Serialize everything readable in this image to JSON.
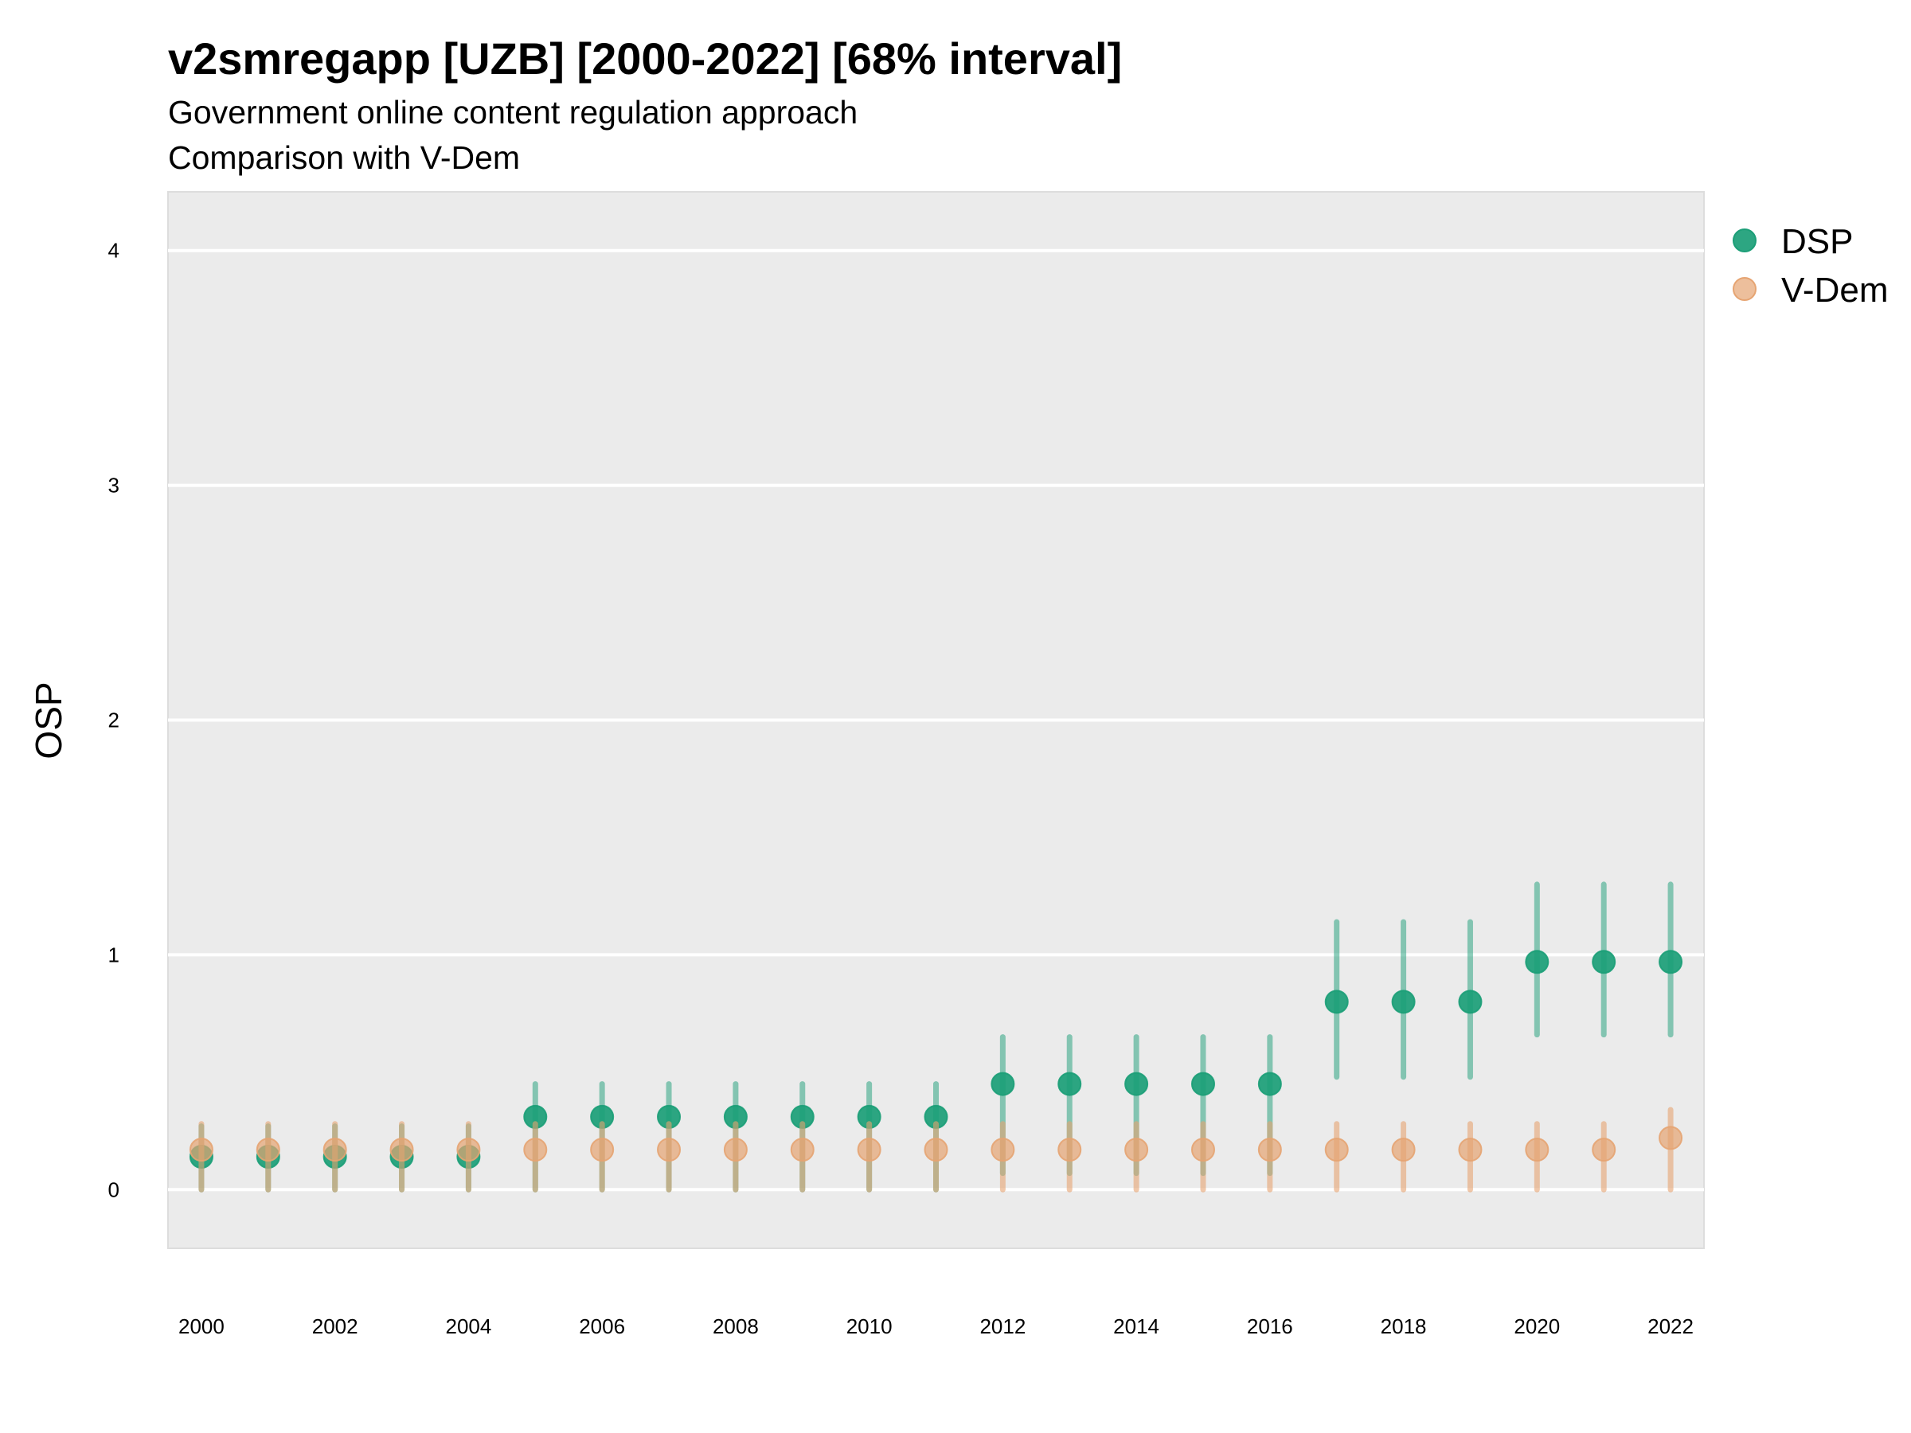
{
  "chart_data": {
    "type": "scatter",
    "title": "v2smregapp [UZB] [2000-2022] [68% interval]",
    "subtitle_lines": [
      "Government online content regulation approach",
      "Comparison with V-Dem"
    ],
    "xlabel": "",
    "ylabel": "OSP",
    "ylim": [
      -0.25,
      4.25
    ],
    "xlim": [
      1999.5,
      2022.5
    ],
    "y_ticks": [
      0,
      1,
      2,
      3,
      4
    ],
    "y_tick_labels": [
      "0",
      "1",
      "2",
      "3",
      "4"
    ],
    "x_ticks": [
      2000,
      2002,
      2004,
      2006,
      2008,
      2010,
      2012,
      2014,
      2016,
      2018,
      2020,
      2022
    ],
    "x_tick_labels": [
      "2000",
      "2002",
      "2004",
      "2006",
      "2008",
      "2010",
      "2012",
      "2014",
      "2016",
      "2018",
      "2020",
      "2022"
    ],
    "grid": true,
    "legend_position": "right",
    "series": [
      {
        "name": "DSP",
        "color": "#1b9e77",
        "points": [
          {
            "x": 2000,
            "y": 0.14,
            "low": 0.0,
            "high": 0.27
          },
          {
            "x": 2001,
            "y": 0.14,
            "low": 0.0,
            "high": 0.27
          },
          {
            "x": 2002,
            "y": 0.14,
            "low": 0.0,
            "high": 0.27
          },
          {
            "x": 2003,
            "y": 0.14,
            "low": 0.0,
            "high": 0.27
          },
          {
            "x": 2004,
            "y": 0.14,
            "low": 0.0,
            "high": 0.27
          },
          {
            "x": 2005,
            "y": 0.31,
            "low": 0.0,
            "high": 0.45
          },
          {
            "x": 2006,
            "y": 0.31,
            "low": 0.0,
            "high": 0.45
          },
          {
            "x": 2007,
            "y": 0.31,
            "low": 0.0,
            "high": 0.45
          },
          {
            "x": 2008,
            "y": 0.31,
            "low": 0.0,
            "high": 0.45
          },
          {
            "x": 2009,
            "y": 0.31,
            "low": 0.0,
            "high": 0.45
          },
          {
            "x": 2010,
            "y": 0.31,
            "low": 0.0,
            "high": 0.45
          },
          {
            "x": 2011,
            "y": 0.31,
            "low": 0.0,
            "high": 0.45
          },
          {
            "x": 2012,
            "y": 0.45,
            "low": 0.07,
            "high": 0.65
          },
          {
            "x": 2013,
            "y": 0.45,
            "low": 0.07,
            "high": 0.65
          },
          {
            "x": 2014,
            "y": 0.45,
            "low": 0.07,
            "high": 0.65
          },
          {
            "x": 2015,
            "y": 0.45,
            "low": 0.07,
            "high": 0.65
          },
          {
            "x": 2016,
            "y": 0.45,
            "low": 0.07,
            "high": 0.65
          },
          {
            "x": 2017,
            "y": 0.8,
            "low": 0.48,
            "high": 1.14
          },
          {
            "x": 2018,
            "y": 0.8,
            "low": 0.48,
            "high": 1.14
          },
          {
            "x": 2019,
            "y": 0.8,
            "low": 0.48,
            "high": 1.14
          },
          {
            "x": 2020,
            "y": 0.97,
            "low": 0.66,
            "high": 1.3
          },
          {
            "x": 2021,
            "y": 0.97,
            "low": 0.66,
            "high": 1.3
          },
          {
            "x": 2022,
            "y": 0.97,
            "low": 0.66,
            "high": 1.3
          }
        ]
      },
      {
        "name": "V-Dem",
        "color": "#e6a472",
        "points": [
          {
            "x": 2000,
            "y": 0.17,
            "low": 0.0,
            "high": 0.28
          },
          {
            "x": 2001,
            "y": 0.17,
            "low": 0.0,
            "high": 0.28
          },
          {
            "x": 2002,
            "y": 0.17,
            "low": 0.0,
            "high": 0.28
          },
          {
            "x": 2003,
            "y": 0.17,
            "low": 0.0,
            "high": 0.28
          },
          {
            "x": 2004,
            "y": 0.17,
            "low": 0.0,
            "high": 0.28
          },
          {
            "x": 2005,
            "y": 0.17,
            "low": 0.0,
            "high": 0.28
          },
          {
            "x": 2006,
            "y": 0.17,
            "low": 0.0,
            "high": 0.28
          },
          {
            "x": 2007,
            "y": 0.17,
            "low": 0.0,
            "high": 0.28
          },
          {
            "x": 2008,
            "y": 0.17,
            "low": 0.0,
            "high": 0.28
          },
          {
            "x": 2009,
            "y": 0.17,
            "low": 0.0,
            "high": 0.28
          },
          {
            "x": 2010,
            "y": 0.17,
            "low": 0.0,
            "high": 0.28
          },
          {
            "x": 2011,
            "y": 0.17,
            "low": 0.0,
            "high": 0.28
          },
          {
            "x": 2012,
            "y": 0.17,
            "low": 0.0,
            "high": 0.28
          },
          {
            "x": 2013,
            "y": 0.17,
            "low": 0.0,
            "high": 0.28
          },
          {
            "x": 2014,
            "y": 0.17,
            "low": 0.0,
            "high": 0.28
          },
          {
            "x": 2015,
            "y": 0.17,
            "low": 0.0,
            "high": 0.28
          },
          {
            "x": 2016,
            "y": 0.17,
            "low": 0.0,
            "high": 0.28
          },
          {
            "x": 2017,
            "y": 0.17,
            "low": 0.0,
            "high": 0.28
          },
          {
            "x": 2018,
            "y": 0.17,
            "low": 0.0,
            "high": 0.28
          },
          {
            "x": 2019,
            "y": 0.17,
            "low": 0.0,
            "high": 0.28
          },
          {
            "x": 2020,
            "y": 0.17,
            "low": 0.0,
            "high": 0.28
          },
          {
            "x": 2021,
            "y": 0.17,
            "low": 0.0,
            "high": 0.28
          },
          {
            "x": 2022,
            "y": 0.22,
            "low": 0.0,
            "high": 0.34
          }
        ]
      }
    ]
  }
}
